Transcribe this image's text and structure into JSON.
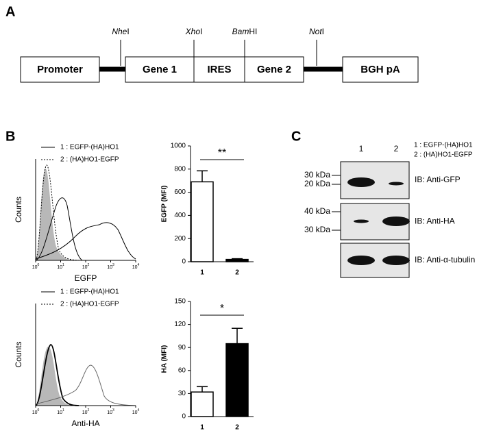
{
  "panels": [
    "A",
    "B",
    "C"
  ],
  "construct": {
    "segments": [
      "Promoter",
      "Gene 1",
      "IRES",
      "Gene 2",
      "BGH pA"
    ],
    "sites": [
      {
        "italic": "Nhe",
        "roman": "I"
      },
      {
        "italic": "Xho",
        "roman": "I"
      },
      {
        "italic": "Bam",
        "roman": "HI"
      },
      {
        "italic": "Not",
        "roman": "I"
      }
    ]
  },
  "flow": [
    {
      "legend": [
        "1 : EGFP-(HA)HO1",
        "2 : (HA)HO1-EGFP"
      ],
      "ylabel": "Counts",
      "xlabel": "EGFP",
      "xticks": [
        {
          "base": "10",
          "exponent": "0"
        },
        {
          "base": "10",
          "exponent": "1"
        },
        {
          "base": "10",
          "exponent": "2"
        },
        {
          "base": "10",
          "exponent": "3"
        },
        {
          "base": "10",
          "exponent": "4"
        }
      ]
    },
    {
      "legend": [
        "1 : EGFP-(HA)HO1",
        "2 : (HA)HO1-EGFP"
      ],
      "ylabel": "Counts",
      "xlabel": "Anti-HA",
      "xticks": [
        {
          "base": "10",
          "exponent": "0"
        },
        {
          "base": "10",
          "exponent": "1"
        },
        {
          "base": "10",
          "exponent": "2"
        },
        {
          "base": "10",
          "exponent": "3"
        },
        {
          "base": "10",
          "exponent": "4"
        }
      ]
    }
  ],
  "chart_data": [
    {
      "type": "bar",
      "ylabel": "EGFP (MFI)",
      "categories": [
        "1",
        "2"
      ],
      "values": [
        690,
        20
      ],
      "errors": [
        95,
        6
      ],
      "colors": [
        "#ffffff",
        "#000000"
      ],
      "ylim": [
        0,
        1000
      ],
      "yticks": [
        0,
        200,
        400,
        600,
        800,
        1000
      ],
      "annotation": "**"
    },
    {
      "type": "bar",
      "ylabel": "HA (MFI)",
      "categories": [
        "1",
        "2"
      ],
      "values": [
        32,
        95
      ],
      "errors": [
        7,
        20
      ],
      "colors": [
        "#ffffff",
        "#000000"
      ],
      "ylim": [
        0,
        150
      ],
      "yticks": [
        0,
        30,
        60,
        90,
        120,
        150
      ],
      "annotation": "*"
    }
  ],
  "blot": {
    "lanes": [
      "1",
      "2"
    ],
    "legend": [
      "1 : EGFP-(HA)HO1",
      "2 : (HA)HO1-EGFP"
    ],
    "blots": [
      {
        "label": "IB: Anti-GFP",
        "markers": [
          "30 kDa",
          "20 kDa"
        ]
      },
      {
        "label": "IB: Anti-HA",
        "markers": [
          "40 kDa",
          "30 kDa"
        ]
      },
      {
        "label": "IB: Anti-α-tubulin",
        "markers": []
      }
    ]
  }
}
